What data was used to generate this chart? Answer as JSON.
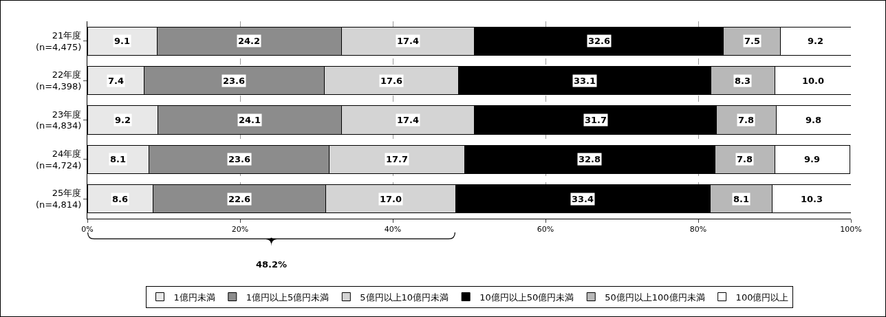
{
  "chart_data": {
    "type": "bar",
    "orientation": "horizontal",
    "stacked": true,
    "categories": [
      "21年度\n(n=4,475)",
      "22年度\n(n=4,398)",
      "23年度\n(n=4,834)",
      "24年度\n(n=4,724)",
      "25年度\n(n=4,814)"
    ],
    "series": [
      {
        "name": "1億円未満",
        "color": "#e8e8e8",
        "values": [
          9.1,
          7.4,
          9.2,
          8.1,
          8.6
        ],
        "value_labels": [
          "9.1",
          "7.4",
          "9.2",
          "8.1",
          "8.6"
        ]
      },
      {
        "name": "1億円以上5億円未満",
        "color": "#8c8c8c",
        "values": [
          24.2,
          23.6,
          24.1,
          23.6,
          22.6
        ],
        "value_labels": [
          "24.2",
          "23.6",
          "24.1",
          "23.6",
          "22.6"
        ]
      },
      {
        "name": "5億円以上10億円未満",
        "color": "#d4d4d4",
        "values": [
          17.4,
          17.6,
          17.4,
          17.7,
          17.0
        ],
        "value_labels": [
          "17.4",
          "17.6",
          "17.4",
          "17.7",
          "17.0"
        ]
      },
      {
        "name": "10億円以上50億円未満",
        "color": "#000000",
        "values": [
          32.6,
          33.1,
          31.7,
          32.8,
          33.4
        ],
        "value_labels": [
          "32.6",
          "33.1",
          "31.7",
          "32.8",
          "33.4"
        ]
      },
      {
        "name": "50億円以上100億円未満",
        "color": "#b8b8b8",
        "values": [
          7.5,
          8.3,
          7.8,
          7.8,
          8.1
        ],
        "value_labels": [
          "7.5",
          "8.3",
          "7.8",
          "7.8",
          "8.1"
        ]
      },
      {
        "name": "100億円以上",
        "color": "#ffffff",
        "values": [
          9.2,
          10.0,
          9.8,
          9.9,
          10.3
        ],
        "value_labels": [
          "9.2",
          "10.0",
          "9.8",
          "9.9",
          "10.3"
        ]
      }
    ],
    "xlim": [
      0,
      100
    ],
    "xticks": [
      {
        "value": 0,
        "label": "0%"
      },
      {
        "value": 20,
        "label": "20%"
      },
      {
        "value": 40,
        "label": "40%"
      },
      {
        "value": 60,
        "label": "60%"
      },
      {
        "value": 80,
        "label": "80%"
      },
      {
        "value": 100,
        "label": "100%"
      }
    ],
    "grid": "x",
    "legend": "bottom",
    "annotations": [
      "48.2%"
    ]
  }
}
